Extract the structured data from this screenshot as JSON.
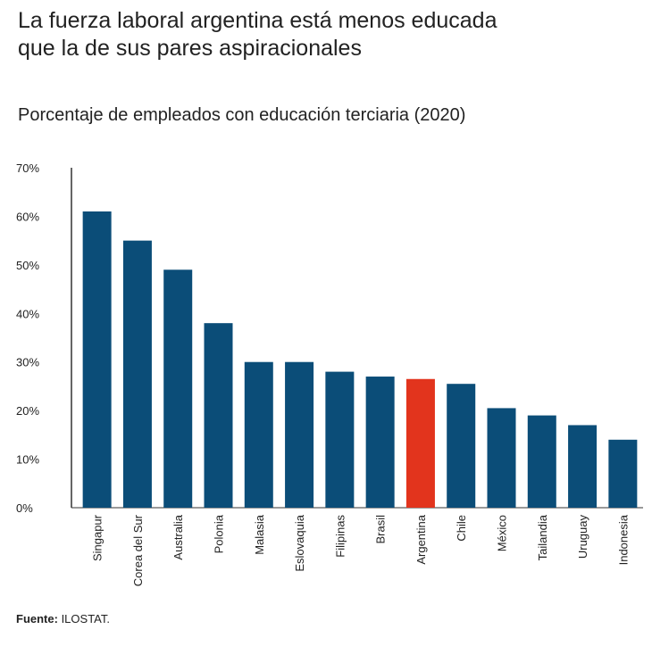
{
  "header": {
    "title_line1": "La fuerza laboral argentina está menos educada",
    "title_line2": "que la de sus pares aspiracionales"
  },
  "chart_data": {
    "type": "bar",
    "subtitle": "Porcentaje de empleados con educación terciaria (2020)",
    "categories": [
      "Singapur",
      "Corea del Sur",
      "Australia",
      "Polonia",
      "Malasia",
      "Eslovaquia",
      "Filipinas",
      "Brasil",
      "Argentina",
      "Chile",
      "México",
      "Tailandia",
      "Uruguay",
      "Indonesia"
    ],
    "values": [
      61,
      55,
      49,
      38,
      30,
      30,
      28,
      27,
      26.5,
      25.5,
      20.5,
      19,
      17,
      14
    ],
    "ylim": [
      0,
      70
    ],
    "yticks": [
      0,
      10,
      20,
      30,
      40,
      50,
      60,
      70
    ],
    "ytick_labels": [
      "0%",
      "10%",
      "20%",
      "30%",
      "40%",
      "50%",
      "60%",
      "70%"
    ],
    "colors": {
      "default": "#0b4d78",
      "highlight": "#e2341d"
    },
    "highlight_category": "Argentina",
    "grid": false
  },
  "footer": {
    "source_label": "Fuente:",
    "source_text": " ILOSTAT."
  }
}
